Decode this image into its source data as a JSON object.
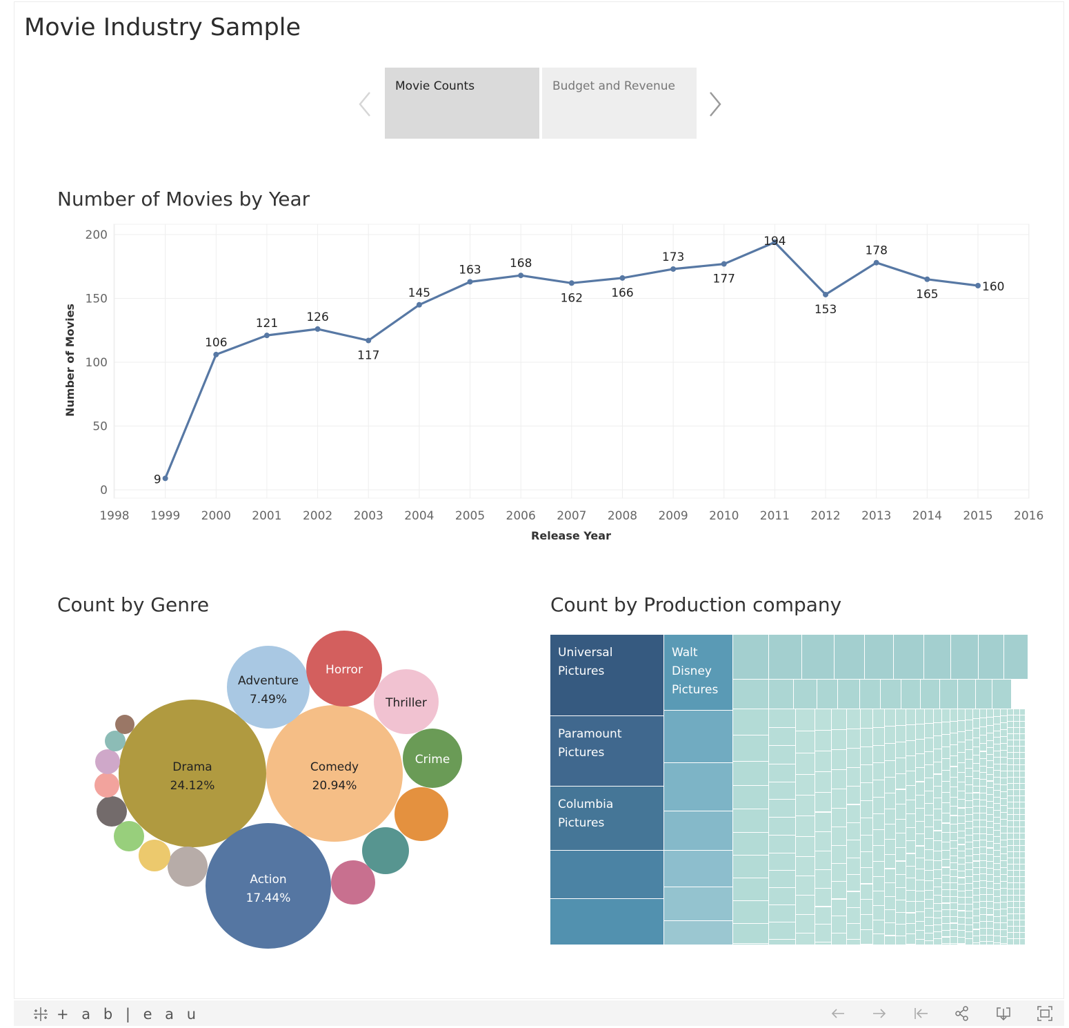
{
  "dashboard": {
    "title": "Movie Industry Sample"
  },
  "story": {
    "points": [
      {
        "label": "Movie Counts",
        "active": true
      },
      {
        "label": "Budget and Revenue",
        "active": false
      }
    ],
    "prev_icon": "chevron-left-icon",
    "next_icon": "chevron-right-icon"
  },
  "line_chart": {
    "title": "Number of Movies by Year"
  },
  "genre_chart": {
    "title": "Count by Genre"
  },
  "company_chart": {
    "title": "Count by Production company",
    "labeled_tiles": [
      {
        "label": "Universal Pictures",
        "color": "#365a80"
      },
      {
        "label": "Walt Disney Pictures",
        "color": "#5a9ab5"
      },
      {
        "label": "Paramount Pictures",
        "color": "#40688e"
      },
      {
        "label": "Columbia Pictures",
        "color": "#457697"
      }
    ]
  },
  "footer": {
    "logo_text": "+ a b | e a u",
    "logo_icon": "tableau-logo-icon",
    "tools": [
      "undo-icon",
      "redo-icon",
      "revert-icon",
      "share-icon",
      "download-icon",
      "fullscreen-icon"
    ]
  },
  "chart_data": [
    {
      "type": "line",
      "title": "Number of Movies by Year",
      "xlabel": "Release Year",
      "ylabel": "Number of Movies",
      "x": [
        1999,
        2000,
        2001,
        2002,
        2003,
        2004,
        2005,
        2006,
        2007,
        2008,
        2009,
        2010,
        2011,
        2012,
        2013,
        2014,
        2015
      ],
      "values": [
        9,
        106,
        121,
        126,
        117,
        145,
        163,
        168,
        162,
        166,
        173,
        177,
        194,
        153,
        178,
        165,
        160
      ],
      "x_ticks": [
        "1998",
        "1999",
        "2000",
        "2001",
        "2002",
        "2003",
        "2004",
        "2005",
        "2006",
        "2007",
        "2008",
        "2009",
        "2010",
        "2011",
        "2012",
        "2013",
        "2014",
        "2015",
        "2016"
      ],
      "y_ticks": [
        "0",
        "50",
        "100",
        "150",
        "200"
      ],
      "xlim": [
        1998,
        2016
      ],
      "ylim": [
        0,
        200
      ],
      "line_color": "#5778a4",
      "grid": true
    },
    {
      "type": "bubble",
      "title": "Count by Genre",
      "bubbles": [
        {
          "name": "Drama",
          "percent": "24.12%",
          "color": "#b09a40",
          "text_color": "#222"
        },
        {
          "name": "Comedy",
          "percent": "20.94%",
          "color": "#f5be86",
          "text_color": "#222"
        },
        {
          "name": "Action",
          "percent": "17.44%",
          "color": "#5576a2",
          "text_color": "#fff"
        },
        {
          "name": "Adventure",
          "percent": "7.49%",
          "color": "#a9c8e3",
          "text_color": "#222"
        },
        {
          "name": "Horror",
          "percent": "",
          "color": "#d35f5e",
          "text_color": "#fff"
        },
        {
          "name": "Thriller",
          "percent": "",
          "color": "#f1c2d1",
          "text_color": "#222"
        },
        {
          "name": "Crime",
          "percent": "",
          "color": "#6a9b56",
          "text_color": "#fff"
        },
        {
          "name": "",
          "percent": "",
          "color": "#e4913f",
          "text_color": "#fff"
        },
        {
          "name": "",
          "percent": "",
          "color": "#579590",
          "text_color": "#fff"
        },
        {
          "name": "",
          "percent": "",
          "color": "#c8708f",
          "text_color": "#fff"
        },
        {
          "name": "",
          "percent": "",
          "color": "#b7aca8",
          "text_color": "#fff"
        },
        {
          "name": "",
          "percent": "",
          "color": "#ecc96d",
          "text_color": "#fff"
        },
        {
          "name": "",
          "percent": "",
          "color": "#98cf7c",
          "text_color": "#fff"
        },
        {
          "name": "",
          "percent": "",
          "color": "#736b6b",
          "text_color": "#fff"
        },
        {
          "name": "",
          "percent": "",
          "color": "#f2a39d",
          "text_color": "#fff"
        },
        {
          "name": "",
          "percent": "",
          "color": "#cfa8c9",
          "text_color": "#fff"
        },
        {
          "name": "",
          "percent": "",
          "color": "#8cbcb6",
          "text_color": "#fff"
        },
        {
          "name": "",
          "percent": "",
          "color": "#9a7766",
          "text_color": "#fff"
        }
      ]
    },
    {
      "type": "treemap",
      "title": "Count by Production company",
      "labeled": [
        "Universal Pictures",
        "Walt Disney Pictures",
        "Paramount Pictures",
        "Columbia Pictures"
      ]
    }
  ]
}
